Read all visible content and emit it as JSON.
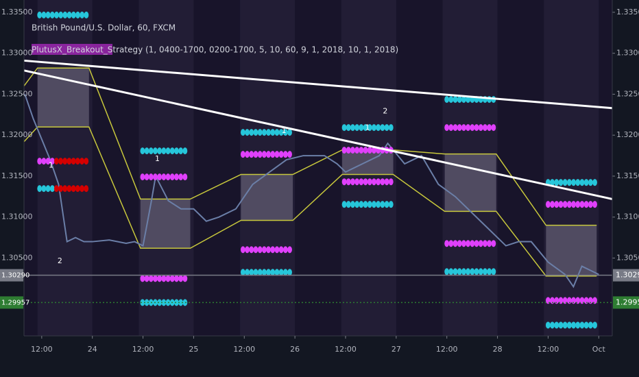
{
  "chart_data": {
    "type": "line",
    "title": "British Pound/U.S. Dollar, 60, FXCM",
    "subtitle": "PlutusX_Breakout_Strategy (1, 0400-1700, 0200-1700, 5, 10, 60, 9, 1, 2018, 10, 1, 2018)",
    "xlim": [
      -16.2,
      123.2
    ],
    "ylim": [
      1.2955,
      1.3365
    ],
    "xticks": [
      {
        "value": -12,
        "label": "12:00"
      },
      {
        "value": 0,
        "label": "24"
      },
      {
        "value": 12,
        "label": "12:00"
      },
      {
        "value": 24,
        "label": "25"
      },
      {
        "value": 36,
        "label": "12:00"
      },
      {
        "value": 48,
        "label": "26"
      },
      {
        "value": 60,
        "label": "12:00"
      },
      {
        "value": 72,
        "label": "27"
      },
      {
        "value": 84,
        "label": "12:00"
      },
      {
        "value": 96,
        "label": "28"
      },
      {
        "value": 108,
        "label": "12:00"
      },
      {
        "value": 120,
        "label": "Oct"
      }
    ],
    "yticks": [
      {
        "value": 1.305,
        "label": "1.30500"
      },
      {
        "value": 1.31,
        "label": "1.31000"
      },
      {
        "value": 1.315,
        "label": "1.31500"
      },
      {
        "value": 1.32,
        "label": "1.32000"
      },
      {
        "value": 1.325,
        "label": "1.32500"
      },
      {
        "value": 1.33,
        "label": "1.33000"
      },
      {
        "value": 1.335,
        "label": "1.33500"
      }
    ],
    "price_tags": [
      {
        "value": 1.3029,
        "label": "1.30290",
        "color": "#787b86"
      },
      {
        "value": 1.29957,
        "label": "1.29957",
        "color": "#2e7d32"
      }
    ],
    "sessions": [
      [
        -13,
        0
      ],
      [
        11,
        24
      ],
      [
        35,
        48
      ],
      [
        59,
        72
      ],
      [
        83,
        96
      ],
      [
        107,
        120
      ]
    ],
    "price": {
      "color": "#6b7fa8",
      "x": [
        -16,
        -14,
        -12,
        -10,
        -8,
        -6,
        -4,
        -2,
        0,
        4,
        8,
        10,
        12,
        14,
        15,
        18,
        21,
        24,
        27,
        30,
        34,
        38,
        42,
        46,
        50,
        55,
        58,
        60,
        64,
        68,
        70,
        74,
        78,
        82,
        86,
        90,
        94,
        98,
        101,
        104,
        108,
        112,
        114,
        116,
        118,
        120
      ],
      "values": [
        1.325,
        1.322,
        1.3195,
        1.317,
        1.314,
        1.307,
        1.3075,
        1.307,
        1.307,
        1.3072,
        1.3068,
        1.307,
        1.3065,
        1.312,
        1.315,
        1.312,
        1.311,
        1.311,
        1.3095,
        1.31,
        1.311,
        1.314,
        1.3155,
        1.317,
        1.3175,
        1.3175,
        1.3165,
        1.3155,
        1.3165,
        1.3175,
        1.319,
        1.3165,
        1.3175,
        1.314,
        1.3125,
        1.3105,
        1.3085,
        1.3065,
        1.307,
        1.307,
        1.3045,
        1.303,
        1.3015,
        1.304,
        1.3035,
        1.303
      ]
    },
    "boxes": [
      {
        "start": -13,
        "end": -0.8,
        "high": 1.3282,
        "low": 1.321
      },
      {
        "start": 11.4,
        "end": 23.2,
        "high": 1.3122,
        "low": 1.3062
      },
      {
        "start": 35.2,
        "end": 47.5,
        "high": 1.3152,
        "low": 1.3096
      },
      {
        "start": 59.2,
        "end": 71.3,
        "high": 1.3182,
        "low": 1.3152
      },
      {
        "start": 83.5,
        "end": 95.7,
        "high": 1.3177,
        "low": 1.3107
      },
      {
        "start": 107.5,
        "end": 119.5,
        "high": 1.309,
        "low": 1.3028
      }
    ],
    "channel_upper": {
      "color": "#c8c83c",
      "x": [
        -16.2,
        -13,
        -0.8,
        11.4,
        23.2,
        35.2,
        47.5,
        59.2,
        71.3,
        83.5,
        95.7,
        107.5,
        119.5
      ],
      "values": [
        1.326,
        1.3282,
        1.3282,
        1.3122,
        1.3122,
        1.3152,
        1.3152,
        1.3182,
        1.3182,
        1.3177,
        1.3177,
        1.309,
        1.309
      ]
    },
    "channel_lower": {
      "color": "#c8c83c",
      "x": [
        -16.2,
        -13,
        -0.8,
        11.4,
        23.2,
        35.2,
        47.5,
        59.2,
        71.3,
        83.5,
        95.7,
        107.5,
        119.5
      ],
      "values": [
        1.3192,
        1.321,
        1.321,
        1.3062,
        1.3062,
        1.3096,
        1.3096,
        1.3152,
        1.3152,
        1.3107,
        1.3107,
        1.3028,
        1.3028
      ]
    },
    "trendlines": [
      {
        "color": "#ffffff",
        "x": [
          -16.2,
          123.2
        ],
        "values": [
          1.3291,
          1.3233
        ]
      },
      {
        "color": "#ffffff",
        "x": [
          -16.2,
          123.2
        ],
        "values": [
          1.3279,
          1.3122
        ]
      }
    ],
    "dot_rows": [
      {
        "start": -13,
        "end": -0.8,
        "price": 1.33467,
        "color": "#26c6da"
      },
      {
        "start": -13,
        "end": -9,
        "price": 1.31683,
        "color": "#e040fb"
      },
      {
        "start": -9,
        "end": -0.8,
        "price": 1.31683,
        "color": "#d50000"
      },
      {
        "start": -13,
        "end": -9,
        "price": 1.31348,
        "color": "#26c6da"
      },
      {
        "start": -9,
        "end": -0.8,
        "price": 1.31348,
        "color": "#d50000"
      },
      {
        "start": 11.4,
        "end": 23.2,
        "price": 1.31808,
        "color": "#26c6da"
      },
      {
        "start": 11.4,
        "end": 23.2,
        "price": 1.3149,
        "color": "#e040fb"
      },
      {
        "start": 11.4,
        "end": 23.2,
        "price": 1.3025,
        "color": "#e040fb"
      },
      {
        "start": 11.4,
        "end": 23.2,
        "price": 1.29957,
        "color": "#26c6da"
      },
      {
        "start": 35.2,
        "end": 47.5,
        "price": 1.32034,
        "color": "#26c6da"
      },
      {
        "start": 35.2,
        "end": 47.5,
        "price": 1.31766,
        "color": "#e040fb"
      },
      {
        "start": 35.2,
        "end": 47.5,
        "price": 1.30602,
        "color": "#e040fb"
      },
      {
        "start": 35.2,
        "end": 47.5,
        "price": 1.30326,
        "color": "#26c6da"
      },
      {
        "start": 59.2,
        "end": 71.3,
        "price": 1.32093,
        "color": "#26c6da"
      },
      {
        "start": 59.2,
        "end": 71.3,
        "price": 1.31817,
        "color": "#e040fb"
      },
      {
        "start": 59.2,
        "end": 71.3,
        "price": 1.31431,
        "color": "#e040fb"
      },
      {
        "start": 59.2,
        "end": 71.3,
        "price": 1.31155,
        "color": "#26c6da"
      },
      {
        "start": 83.5,
        "end": 95.7,
        "price": 1.32436,
        "color": "#26c6da"
      },
      {
        "start": 83.5,
        "end": 95.7,
        "price": 1.32093,
        "color": "#e040fb"
      },
      {
        "start": 83.5,
        "end": 95.7,
        "price": 1.30678,
        "color": "#e040fb"
      },
      {
        "start": 83.5,
        "end": 95.7,
        "price": 1.30334,
        "color": "#26c6da"
      },
      {
        "start": 107.5,
        "end": 119.5,
        "price": 1.31423,
        "color": "#26c6da"
      },
      {
        "start": 107.5,
        "end": 119.5,
        "price": 1.31155,
        "color": "#e040fb"
      },
      {
        "start": 107.5,
        "end": 119.5,
        "price": 1.29982,
        "color": "#e040fb"
      },
      {
        "start": 107.5,
        "end": 119.5,
        "price": 1.29681,
        "color": "#26c6da"
      }
    ],
    "annotations": [
      {
        "text": "1",
        "x": -9.8,
        "y": 1.3163
      },
      {
        "text": "2",
        "x": -7.7,
        "y": 1.3046
      },
      {
        "text": "1",
        "x": 15.4,
        "y": 1.3171
      },
      {
        "text": "1",
        "x": 45.4,
        "y": 1.3205
      },
      {
        "text": "1",
        "x": 65.2,
        "y": 1.3209
      },
      {
        "text": "2",
        "x": 69.4,
        "y": 1.3229
      }
    ]
  }
}
